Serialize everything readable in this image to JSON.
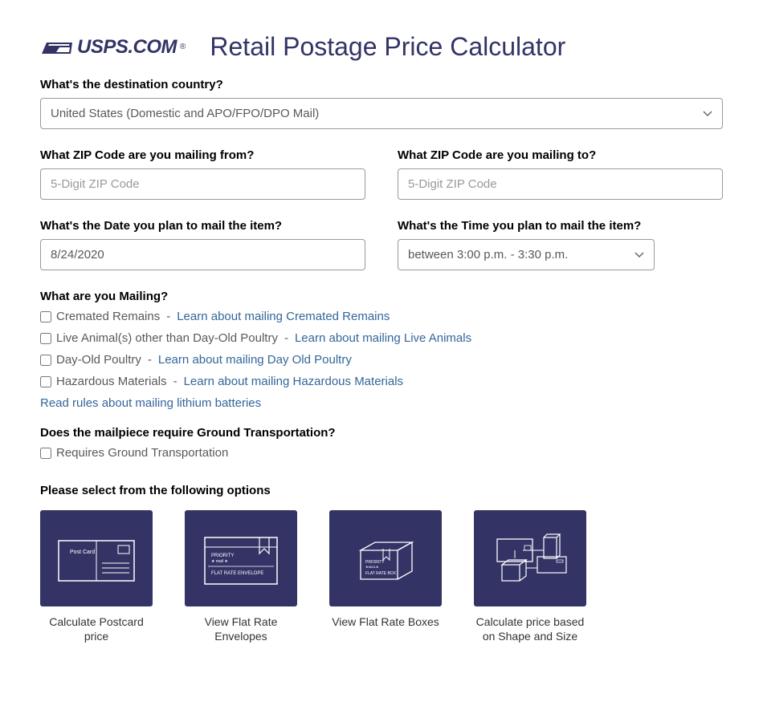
{
  "logo": {
    "text": "USPS.COM",
    "reg": "®"
  },
  "page_title": "Retail Postage Price Calculator",
  "destination": {
    "label": "What's the destination country?",
    "value": "United States (Domestic and APO/FPO/DPO Mail)"
  },
  "zip_from": {
    "label": "What ZIP Code are you mailing from?",
    "placeholder": "5-Digit ZIP Code"
  },
  "zip_to": {
    "label": "What ZIP Code are you mailing to?",
    "placeholder": "5-Digit ZIP Code"
  },
  "mail_date": {
    "label": "What's the Date you plan to mail the item?",
    "value": "8/24/2020"
  },
  "mail_time": {
    "label": "What's the Time you plan to mail the item?",
    "value": "between 3:00 p.m. - 3:30 p.m."
  },
  "mailing": {
    "label": "What are you Mailing?",
    "items": [
      {
        "text": "Cremated Remains",
        "link": "Learn about mailing Cremated Remains"
      },
      {
        "text": "Live Animal(s) other than Day-Old Poultry",
        "link": "Learn about mailing Live Animals"
      },
      {
        "text": "Day-Old Poultry",
        "link": "Learn about mailing Day Old Poultry"
      },
      {
        "text": "Hazardous Materials",
        "link": "Learn about mailing Hazardous Materials"
      }
    ],
    "lithium_link": "Read rules about mailing lithium batteries"
  },
  "ground": {
    "label": "Does the mailpiece require Ground Transportation?",
    "checkbox_text": "Requires Ground Transportation"
  },
  "options": {
    "label": "Please select from the following options",
    "cards": [
      {
        "label": "Calculate Postcard price"
      },
      {
        "label": "View Flat Rate Envelopes"
      },
      {
        "label": "View Flat Rate Boxes"
      },
      {
        "label": "Calculate price based on Shape and Size"
      }
    ]
  },
  "colors": {
    "brand": "#333366",
    "link": "#336699",
    "text_muted": "#595959"
  }
}
